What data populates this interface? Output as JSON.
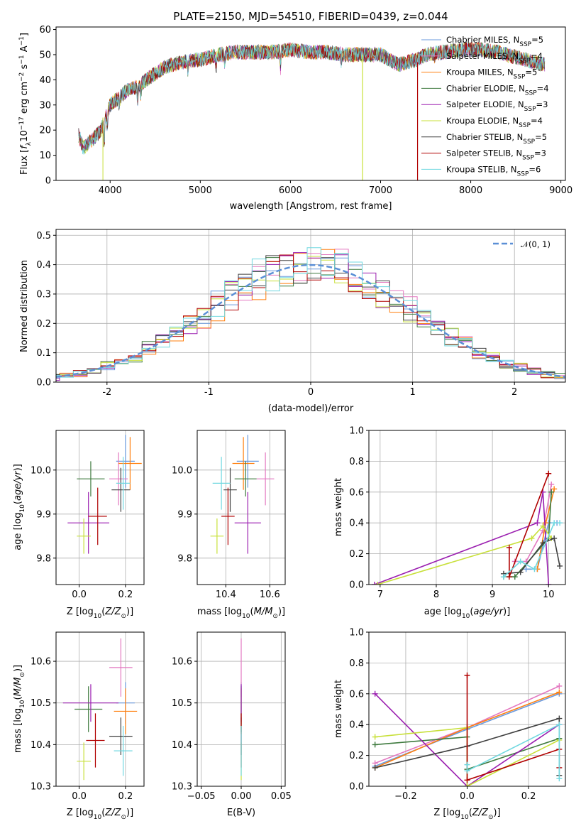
{
  "colors": [
    "#1f77b4",
    "#9467bd",
    "#ff7f0e",
    "#2f5f2f",
    "#9b1fb0",
    "#c8e03a",
    "#303030",
    "#a00000",
    "#70d8e0"
  ],
  "panel_colors": [
    "#6a9ade",
    "#e378c0",
    "#ff7f0e",
    "#3e7a3e",
    "#9b1fb0",
    "#c8e03a",
    "#404040",
    "#b00000",
    "#70d8e0"
  ],
  "chart_data": [
    {
      "id": "spectrum",
      "type": "line",
      "title": "PLATE=2150, MJD=54510, FIBERID=0439, z=0.044",
      "xlabel": "wavelength [Angstrom, rest frame]",
      "ylabel": "Flux [f_λ10^-17 erg cm^-2 s^-1 A^-1]",
      "xlim": [
        3400,
        9050
      ],
      "ylim": [
        0,
        61
      ],
      "xticks": [
        4000,
        5000,
        6000,
        7000,
        8000,
        9000
      ],
      "yticks": [
        0,
        10,
        20,
        30,
        40,
        50,
        60
      ],
      "grid": false,
      "legend": "upper-right",
      "series": [
        {
          "name": "Chabrier MILES, N_SSP=5"
        },
        {
          "name": "Salpeter MILES, N_SSP=4"
        },
        {
          "name": "Kroupa MILES, N_SSP=5"
        },
        {
          "name": "Chabrier ELODIE, N_SSP=4"
        },
        {
          "name": "Salpeter ELODIE, N_SSP=3"
        },
        {
          "name": "Kroupa ELODIE, N_SSP=4"
        },
        {
          "name": "Chabrier STELIB, N_SSP=5"
        },
        {
          "name": "Salpeter STELIB, N_SSP=3"
        },
        {
          "name": "Kroupa STELIB, N_SSP=6"
        }
      ],
      "continuum": [
        [
          3650,
          18
        ],
        [
          3700,
          13
        ],
        [
          3800,
          16
        ],
        [
          3900,
          20
        ],
        [
          3950,
          25
        ],
        [
          4000,
          30
        ],
        [
          4100,
          33
        ],
        [
          4200,
          36
        ],
        [
          4300,
          37
        ],
        [
          4400,
          40
        ],
        [
          4600,
          45
        ],
        [
          4800,
          47
        ],
        [
          5000,
          48
        ],
        [
          5200,
          50
        ],
        [
          5400,
          51
        ],
        [
          5600,
          51
        ],
        [
          5800,
          51
        ],
        [
          6000,
          52
        ],
        [
          6200,
          51
        ],
        [
          6400,
          51
        ],
        [
          6600,
          50
        ],
        [
          6800,
          50
        ],
        [
          7000,
          50
        ],
        [
          7100,
          48
        ],
        [
          7200,
          46
        ],
        [
          7300,
          47
        ],
        [
          7400,
          48
        ],
        [
          7500,
          50
        ],
        [
          7700,
          51
        ],
        [
          7900,
          52
        ],
        [
          8100,
          52
        ],
        [
          8300,
          51
        ],
        [
          8500,
          49
        ],
        [
          8700,
          47
        ],
        [
          8820,
          46
        ]
      ]
    },
    {
      "id": "residuals",
      "type": "histogram",
      "xlabel": "(data-model)/error",
      "ylabel": "Normed distribution",
      "xlim": [
        -2.5,
        2.5
      ],
      "ylim": [
        0,
        0.52
      ],
      "xticks": [
        -2,
        -1,
        0,
        1,
        2
      ],
      "yticks": [
        0.0,
        0.1,
        0.2,
        0.3,
        0.4,
        0.5
      ],
      "grid": true,
      "legend": "upper-right",
      "reference_label": "𝒩(0, 1)"
    },
    {
      "id": "age-vs-Z",
      "type": "errorbar",
      "xlabel": "Z [log10(Z/Z⊙)]",
      "ylabel": "age [log10(age/yr)]",
      "xlim": [
        -0.1,
        0.28
      ],
      "ylim": [
        9.74,
        10.09
      ],
      "xticks": [
        0.0,
        0.2
      ],
      "yticks": [
        9.8,
        9.9,
        10.0
      ],
      "grid": true,
      "points": [
        {
          "x": 0.2,
          "y": 10.02,
          "xe": 0.04,
          "ye": 0.06,
          "c": 0
        },
        {
          "x": 0.17,
          "y": 9.98,
          "xe": 0.04,
          "ye": 0.06,
          "c": 1
        },
        {
          "x": 0.22,
          "y": 10.015,
          "xe": 0.05,
          "ye": 0.06,
          "c": 2
        },
        {
          "x": 0.05,
          "y": 9.98,
          "xe": 0.06,
          "ye": 0.04,
          "c": 3
        },
        {
          "x": 0.04,
          "y": 9.88,
          "xe": 0.09,
          "ye": 0.07,
          "c": 4
        },
        {
          "x": 0.02,
          "y": 9.85,
          "xe": 0.03,
          "ye": 0.04,
          "c": 5
        },
        {
          "x": 0.18,
          "y": 9.955,
          "xe": 0.04,
          "ye": 0.05,
          "c": 6
        },
        {
          "x": 0.08,
          "y": 9.895,
          "xe": 0.04,
          "ye": 0.065,
          "c": 7
        },
        {
          "x": 0.19,
          "y": 9.97,
          "xe": 0.03,
          "ye": 0.06,
          "c": 8
        }
      ]
    },
    {
      "id": "age-vs-mass",
      "type": "errorbar",
      "xlabel": "mass [log10(M/M⊙)]",
      "ylabel": "",
      "xlim": [
        10.27,
        10.67
      ],
      "ylim": [
        9.74,
        10.09
      ],
      "xticks": [
        10.4,
        10.6
      ],
      "yticks": [
        9.8,
        9.9,
        10.0
      ],
      "grid": true,
      "points": [
        {
          "x": 10.5,
          "y": 10.02,
          "xe": 0.05,
          "ye": 0.06,
          "c": 0
        },
        {
          "x": 10.58,
          "y": 9.98,
          "xe": 0.04,
          "ye": 0.06,
          "c": 1
        },
        {
          "x": 10.48,
          "y": 10.015,
          "xe": 0.05,
          "ye": 0.06,
          "c": 2
        },
        {
          "x": 10.49,
          "y": 9.98,
          "xe": 0.05,
          "ye": 0.04,
          "c": 3
        },
        {
          "x": 10.5,
          "y": 9.88,
          "xe": 0.06,
          "ye": 0.07,
          "c": 4
        },
        {
          "x": 10.36,
          "y": 9.85,
          "xe": 0.03,
          "ye": 0.04,
          "c": 5
        },
        {
          "x": 10.42,
          "y": 9.955,
          "xe": 0.03,
          "ye": 0.05,
          "c": 6
        },
        {
          "x": 10.41,
          "y": 9.895,
          "xe": 0.03,
          "ye": 0.065,
          "c": 7
        },
        {
          "x": 10.38,
          "y": 9.97,
          "xe": 0.04,
          "ye": 0.06,
          "c": 8
        }
      ]
    },
    {
      "id": "massweight-vs-age",
      "type": "line",
      "xlabel": "age [log10(age/yr)]",
      "ylabel": "mass weight",
      "xlim": [
        6.8,
        10.3
      ],
      "ylim": [
        0,
        1.0
      ],
      "xticks": [
        7,
        8,
        9,
        10
      ],
      "yticks": [
        0.0,
        0.2,
        0.4,
        0.6,
        0.8,
        1.0
      ],
      "grid": true,
      "series": [
        {
          "c": 0,
          "x": [
            9.6,
            9.8,
            10.0,
            10.15
          ],
          "y": [
            0.1,
            0.1,
            0.4,
            0.4
          ]
        },
        {
          "c": 1,
          "x": [
            9.4,
            9.6,
            9.9,
            10.05
          ],
          "y": [
            0.15,
            0.15,
            0.35,
            0.65
          ]
        },
        {
          "c": 2,
          "x": [
            9.8,
            9.95,
            10.1
          ],
          "y": [
            0.1,
            0.4,
            0.62
          ]
        },
        {
          "c": 3,
          "x": [
            9.2,
            9.4,
            10.0,
            10.05
          ],
          "y": [
            0.05,
            0.05,
            0.3,
            0.6
          ]
        },
        {
          "c": 4,
          "x": [
            6.9,
            9.8,
            9.9,
            10.0
          ],
          "y": [
            0.0,
            0.4,
            0.6,
            0.0
          ]
        },
        {
          "c": 5,
          "x": [
            6.95,
            9.7,
            9.9,
            10.05
          ],
          "y": [
            0.0,
            0.3,
            0.38,
            0.3
          ]
        },
        {
          "c": 6,
          "x": [
            9.2,
            9.5,
            9.9,
            10.1,
            10.2
          ],
          "y": [
            0.07,
            0.08,
            0.27,
            0.3,
            0.12
          ]
        },
        {
          "c": 7,
          "x": [
            9.3,
            9.3,
            10.0
          ],
          "y": [
            0.24,
            0.05,
            0.72
          ]
        },
        {
          "c": 8,
          "x": [
            9.2,
            9.5,
            9.75,
            10.1,
            10.2
          ],
          "y": [
            0.05,
            0.15,
            0.1,
            0.4,
            0.4
          ]
        }
      ]
    },
    {
      "id": "mass-vs-Z",
      "type": "errorbar",
      "xlabel": "Z [log10(Z/Z⊙)]",
      "ylabel": "mass [log10(M/M⊙)]",
      "xlim": [
        -0.1,
        0.28
      ],
      "ylim": [
        10.3,
        10.67
      ],
      "xticks": [
        0.0,
        0.2
      ],
      "yticks": [
        10.3,
        10.4,
        10.5,
        10.6
      ],
      "grid": true,
      "points": [
        {
          "x": 0.2,
          "y": 10.5,
          "xe": 0.04,
          "ye": 0.05,
          "c": 0
        },
        {
          "x": 0.18,
          "y": 10.585,
          "xe": 0.05,
          "ye": 0.07,
          "c": 1
        },
        {
          "x": 0.2,
          "y": 10.48,
          "xe": 0.05,
          "ye": 0.055,
          "c": 2
        },
        {
          "x": 0.04,
          "y": 10.485,
          "xe": 0.06,
          "ye": 0.055,
          "c": 3
        },
        {
          "x": 0.05,
          "y": 10.5,
          "xe": 0.12,
          "ye": 0.045,
          "c": 4
        },
        {
          "x": 0.02,
          "y": 10.36,
          "xe": 0.03,
          "ye": 0.045,
          "c": 5
        },
        {
          "x": 0.18,
          "y": 10.42,
          "xe": 0.05,
          "ye": 0.045,
          "c": 6
        },
        {
          "x": 0.07,
          "y": 10.41,
          "xe": 0.04,
          "ye": 0.065,
          "c": 7
        },
        {
          "x": 0.19,
          "y": 10.385,
          "xe": 0.04,
          "ye": 0.06,
          "c": 8
        }
      ]
    },
    {
      "id": "mass-vs-EBV",
      "type": "errorbar",
      "xlabel": "E(B-V)",
      "ylabel": "",
      "xlim": [
        -0.055,
        0.055
      ],
      "ylim": [
        10.3,
        10.67
      ],
      "xticks": [
        -0.05,
        0.0,
        0.05
      ],
      "xticklabels": [
        "−0.05",
        "0.00",
        "0.05"
      ],
      "yticks": [
        10.3,
        10.4,
        10.5,
        10.6
      ],
      "grid": true,
      "points": [
        {
          "x": 0.0,
          "y": 10.5,
          "xe": 0.0,
          "ye": 0.05,
          "c": 0
        },
        {
          "x": 0.0,
          "y": 10.585,
          "xe": 0.0,
          "ye": 0.07,
          "c": 1
        },
        {
          "x": 0.0,
          "y": 10.48,
          "xe": 0.0,
          "ye": 0.055,
          "c": 2
        },
        {
          "x": 0.0,
          "y": 10.485,
          "xe": 0.0,
          "ye": 0.055,
          "c": 3
        },
        {
          "x": 0.0,
          "y": 10.5,
          "xe": 0.0,
          "ye": 0.045,
          "c": 4
        },
        {
          "x": 0.0,
          "y": 10.36,
          "xe": 0.0,
          "ye": 0.045,
          "c": 5
        },
        {
          "x": 0.0,
          "y": 10.42,
          "xe": 0.0,
          "ye": 0.045,
          "c": 6
        },
        {
          "x": 0.0,
          "y": 10.41,
          "xe": 0.0,
          "ye": 0.065,
          "c": 7
        },
        {
          "x": 0.0,
          "y": 10.385,
          "xe": 0.0,
          "ye": 0.06,
          "c": 8
        }
      ]
    },
    {
      "id": "massweight-vs-Z",
      "type": "line",
      "xlabel": "Z [log10(Z/Z⊙)]",
      "ylabel": "mass weight",
      "xlim": [
        -0.32,
        0.32
      ],
      "ylim": [
        0,
        1.0
      ],
      "xticks": [
        -0.2,
        0.0,
        0.2
      ],
      "xticklabels": [
        "−0.2",
        "0.0",
        "0.2"
      ],
      "yticks": [
        0.0,
        0.2,
        0.4,
        0.6,
        0.8,
        1.0
      ],
      "grid": true,
      "series": [
        {
          "c": 0,
          "x": [
            -0.3,
            0.0,
            0.3
          ],
          "y": [
            0.13,
            0.37,
            0.6
          ]
        },
        {
          "c": 1,
          "x": [
            -0.3,
            0.0,
            0.3
          ],
          "y": [
            0.15,
            0.38,
            0.65
          ]
        },
        {
          "c": 2,
          "x": [
            -0.3,
            0.0,
            0.3
          ],
          "y": [
            0.12,
            0.38,
            0.61
          ]
        },
        {
          "c": 3,
          "x": [
            -0.3,
            0.0,
            0.0,
            0.3
          ],
          "y": [
            0.27,
            0.32,
            0.11,
            0.31
          ]
        },
        {
          "c": 4,
          "x": [
            -0.3,
            0.0,
            0.3
          ],
          "y": [
            0.6,
            0.0,
            0.4
          ]
        },
        {
          "c": 5,
          "x": [
            -0.3,
            0.0,
            0.0,
            0.3
          ],
          "y": [
            0.32,
            0.38,
            0.0,
            0.3
          ]
        },
        {
          "c": 6,
          "x": [
            -0.3,
            0.0,
            0.3,
            0.3
          ],
          "y": [
            0.12,
            0.26,
            0.44,
            0.07
          ]
        },
        {
          "c": 7,
          "x": [
            0.0,
            0.0,
            0.3,
            0.3
          ],
          "y": [
            0.72,
            0.04,
            0.24,
            0.12
          ]
        },
        {
          "c": 8,
          "x": [
            0.0,
            0.0,
            0.3,
            0.3
          ],
          "y": [
            0.14,
            0.1,
            0.4,
            0.05
          ]
        }
      ]
    }
  ]
}
